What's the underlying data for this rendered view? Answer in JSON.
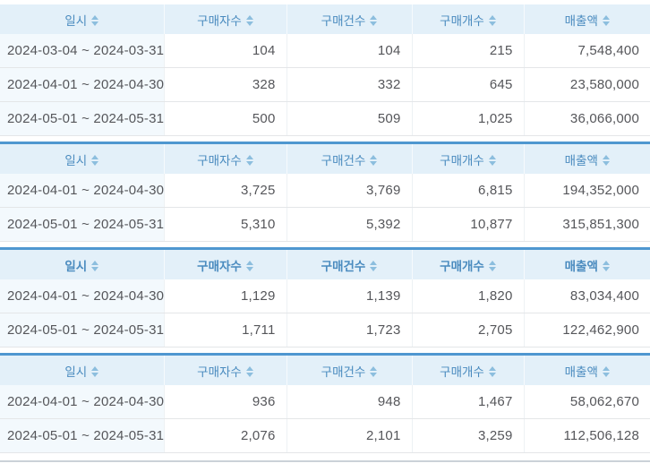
{
  "columns": [
    {
      "id": "date",
      "label": "일시"
    },
    {
      "id": "buyers",
      "label": "구매자수"
    },
    {
      "id": "orders",
      "label": "구매건수"
    },
    {
      "id": "items",
      "label": "구매개수"
    },
    {
      "id": "revenue",
      "label": "매출액"
    }
  ],
  "tables": [
    {
      "rows": [
        [
          "2024-03-04 ~ 2024-03-31",
          "104",
          "104",
          "215",
          "7,548,400"
        ],
        [
          "2024-04-01 ~ 2024-04-30",
          "328",
          "332",
          "645",
          "23,580,000"
        ],
        [
          "2024-05-01 ~ 2024-05-31",
          "500",
          "509",
          "1,025",
          "36,066,000"
        ]
      ]
    },
    {
      "rows": [
        [
          "2024-04-01 ~ 2024-04-30",
          "3,725",
          "3,769",
          "6,815",
          "194,352,000"
        ],
        [
          "2024-05-01 ~ 2024-05-31",
          "5,310",
          "5,392",
          "10,877",
          "315,851,300"
        ]
      ]
    },
    {
      "rows": [
        [
          "2024-04-01 ~ 2024-04-30",
          "1,129",
          "1,139",
          "1,820",
          "83,034,400"
        ],
        [
          "2024-05-01 ~ 2024-05-31",
          "1,711",
          "1,723",
          "2,705",
          "122,462,900"
        ]
      ]
    },
    {
      "rows": [
        [
          "2024-04-01 ~ 2024-04-30",
          "936",
          "948",
          "1,467",
          "58,062,670"
        ],
        [
          "2024-05-01 ~ 2024-05-31",
          "2,076",
          "2,101",
          "3,259",
          "112,506,128"
        ]
      ]
    }
  ],
  "colors": {
    "header_background": "#e3f0f9",
    "header_text": "#4a8bbf",
    "sort_arrow": "#8cbede",
    "table_top_border": "#4f97d0",
    "date_cell_background": "#f3f9fd",
    "data_text": "#55565a",
    "row_border": "#e4e6e8",
    "bottom_line": "#cbd2d8"
  }
}
